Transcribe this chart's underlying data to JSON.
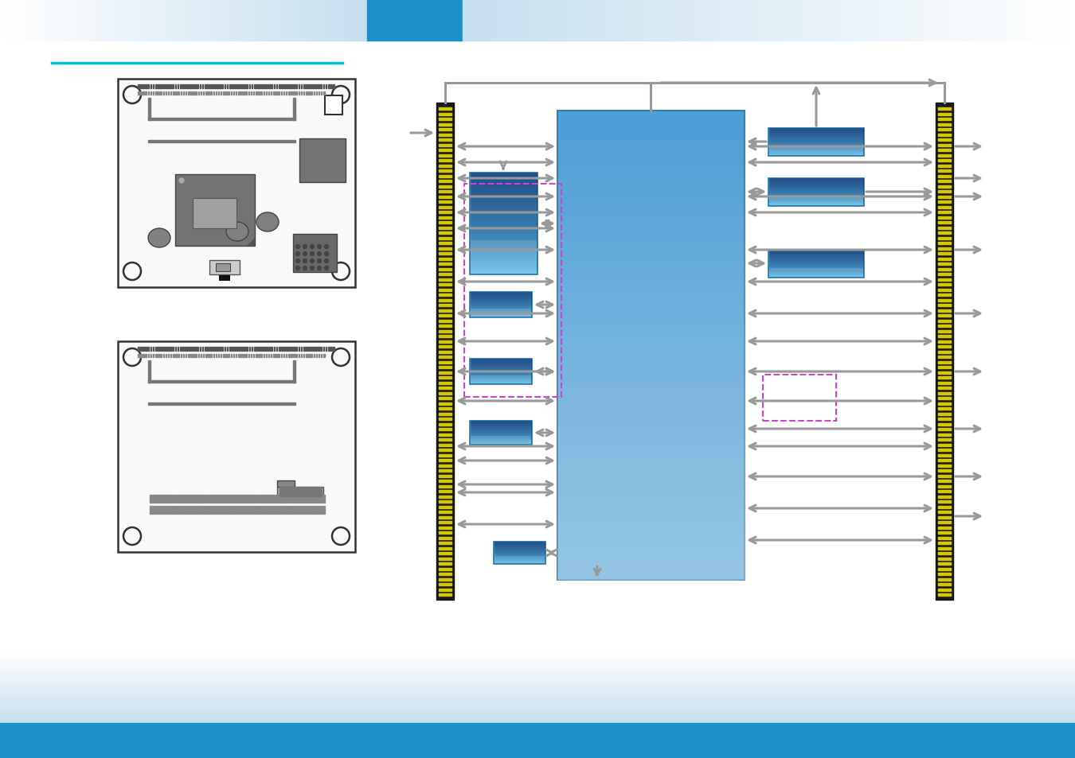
{
  "bg_color": "#ffffff",
  "header_blue": "#1a90c8",
  "header_light": "#c5dff0",
  "cyan_line": "#00c0d4",
  "board_outline": "#333333",
  "chip_dark": "#737373",
  "chip_medium": "#9a9a9a",
  "chip_light": "#aaaaaa",
  "connector_dark": "#1a1a1a",
  "connector_yellow": "#d4c800",
  "connector_body": "#2a2a2a",
  "arrow_gray": "#999999",
  "block_blue_fill": "#4d9fd6",
  "block_blue_light_fill": "#7ec8e3",
  "block_blue_highlight": "#b8e4f8",
  "block_blue_gradient_top": "#8dd4f0",
  "dashed_pink": "#cc44cc",
  "main_chip_blue": "#4d9fd6",
  "top_line_gray": "#888888",
  "footer_blue": "#1a90c8",
  "footer_light": "#c5dff0"
}
